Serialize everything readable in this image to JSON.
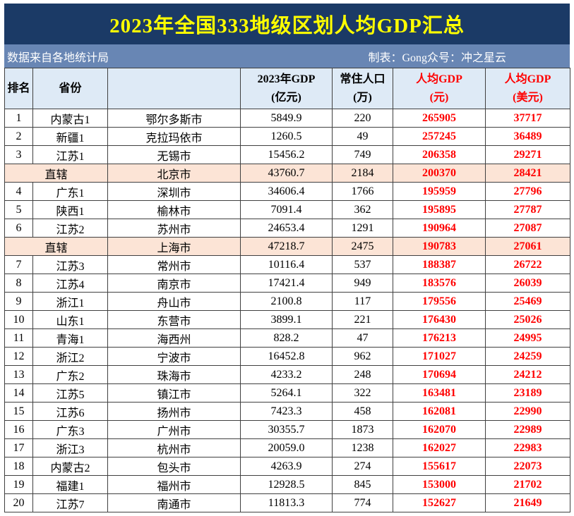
{
  "page_title": "2023年全国333地级区划人均GDP汇总",
  "subtitle": {
    "source": "数据来自各地统计局",
    "credit": "制表：Gong众号：冲之星云"
  },
  "chart_data": {
    "type": "table",
    "title": "2023年全国333地级区划人均GDP汇总",
    "headers": {
      "rank": "排名",
      "province": "省份",
      "city": "",
      "gdp_line1": "2023年GDP",
      "gdp_line2": "(亿元)",
      "pop_line1": "常住人口",
      "pop_line2": "(万)",
      "cny_line1": "人均GDP",
      "cny_line2": "(元)",
      "usd_line1": "人均GDP",
      "usd_line2": "(美元)"
    },
    "rows": [
      {
        "rank": "1",
        "province": "内蒙古1",
        "city": "鄂尔多斯市",
        "gdp": "5849.9",
        "pop": "220",
        "cny": "265905",
        "usd": "37717",
        "direct": false
      },
      {
        "rank": "2",
        "province": "新疆1",
        "city": "克拉玛依市",
        "gdp": "1260.5",
        "pop": "49",
        "cny": "257245",
        "usd": "36489",
        "direct": false
      },
      {
        "rank": "3",
        "province": "江苏1",
        "city": "无锡市",
        "gdp": "15456.2",
        "pop": "749",
        "cny": "206358",
        "usd": "29271",
        "direct": false
      },
      {
        "rank": "",
        "province": "直辖",
        "city": "北京市",
        "gdp": "43760.7",
        "pop": "2184",
        "cny": "200370",
        "usd": "28421",
        "direct": true
      },
      {
        "rank": "4",
        "province": "广东1",
        "city": "深圳市",
        "gdp": "34606.4",
        "pop": "1766",
        "cny": "195959",
        "usd": "27796",
        "direct": false
      },
      {
        "rank": "5",
        "province": "陕西1",
        "city": "榆林市",
        "gdp": "7091.4",
        "pop": "362",
        "cny": "195895",
        "usd": "27787",
        "direct": false
      },
      {
        "rank": "6",
        "province": "江苏2",
        "city": "苏州市",
        "gdp": "24653.4",
        "pop": "1291",
        "cny": "190964",
        "usd": "27087",
        "direct": false
      },
      {
        "rank": "",
        "province": "直辖",
        "city": "上海市",
        "gdp": "47218.7",
        "pop": "2475",
        "cny": "190783",
        "usd": "27061",
        "direct": true
      },
      {
        "rank": "7",
        "province": "江苏3",
        "city": "常州市",
        "gdp": "10116.4",
        "pop": "537",
        "cny": "188387",
        "usd": "26722",
        "direct": false
      },
      {
        "rank": "8",
        "province": "江苏4",
        "city": "南京市",
        "gdp": "17421.4",
        "pop": "949",
        "cny": "183576",
        "usd": "26039",
        "direct": false
      },
      {
        "rank": "9",
        "province": "浙江1",
        "city": "舟山市",
        "gdp": "2100.8",
        "pop": "117",
        "cny": "179556",
        "usd": "25469",
        "direct": false
      },
      {
        "rank": "10",
        "province": "山东1",
        "city": "东营市",
        "gdp": "3899.1",
        "pop": "221",
        "cny": "176430",
        "usd": "25026",
        "direct": false
      },
      {
        "rank": "11",
        "province": "青海1",
        "city": "海西州",
        "gdp": "828.2",
        "pop": "47",
        "cny": "176213",
        "usd": "24995",
        "direct": false
      },
      {
        "rank": "12",
        "province": "浙江2",
        "city": "宁波市",
        "gdp": "16452.8",
        "pop": "962",
        "cny": "171027",
        "usd": "24259",
        "direct": false
      },
      {
        "rank": "13",
        "province": "广东2",
        "city": "珠海市",
        "gdp": "4233.2",
        "pop": "248",
        "cny": "170694",
        "usd": "24212",
        "direct": false
      },
      {
        "rank": "14",
        "province": "江苏5",
        "city": "镇江市",
        "gdp": "5264.1",
        "pop": "322",
        "cny": "163481",
        "usd": "23189",
        "direct": false
      },
      {
        "rank": "15",
        "province": "江苏6",
        "city": "扬州市",
        "gdp": "7423.3",
        "pop": "458",
        "cny": "162081",
        "usd": "22990",
        "direct": false
      },
      {
        "rank": "16",
        "province": "广东3",
        "city": "广州市",
        "gdp": "30355.7",
        "pop": "1873",
        "cny": "162070",
        "usd": "22989",
        "direct": false
      },
      {
        "rank": "17",
        "province": "浙江3",
        "city": "杭州市",
        "gdp": "20059.0",
        "pop": "1238",
        "cny": "162027",
        "usd": "22983",
        "direct": false
      },
      {
        "rank": "18",
        "province": "内蒙古2",
        "city": "包头市",
        "gdp": "4263.9",
        "pop": "274",
        "cny": "155617",
        "usd": "22073",
        "direct": false
      },
      {
        "rank": "19",
        "province": "福建1",
        "city": "福州市",
        "gdp": "12928.5",
        "pop": "845",
        "cny": "153000",
        "usd": "21702",
        "direct": false
      },
      {
        "rank": "20",
        "province": "江苏7",
        "city": "南通市",
        "gdp": "11813.3",
        "pop": "774",
        "cny": "152627",
        "usd": "21649",
        "direct": false
      }
    ]
  },
  "colors": {
    "title_bg": "#1B3A66",
    "title_text": "#FFFF00",
    "subtitle_bg": "#6886B4",
    "header_bg": "#DEEAF6",
    "direct_row_bg": "#FCE4D6",
    "highlight_text": "#FF0000"
  }
}
